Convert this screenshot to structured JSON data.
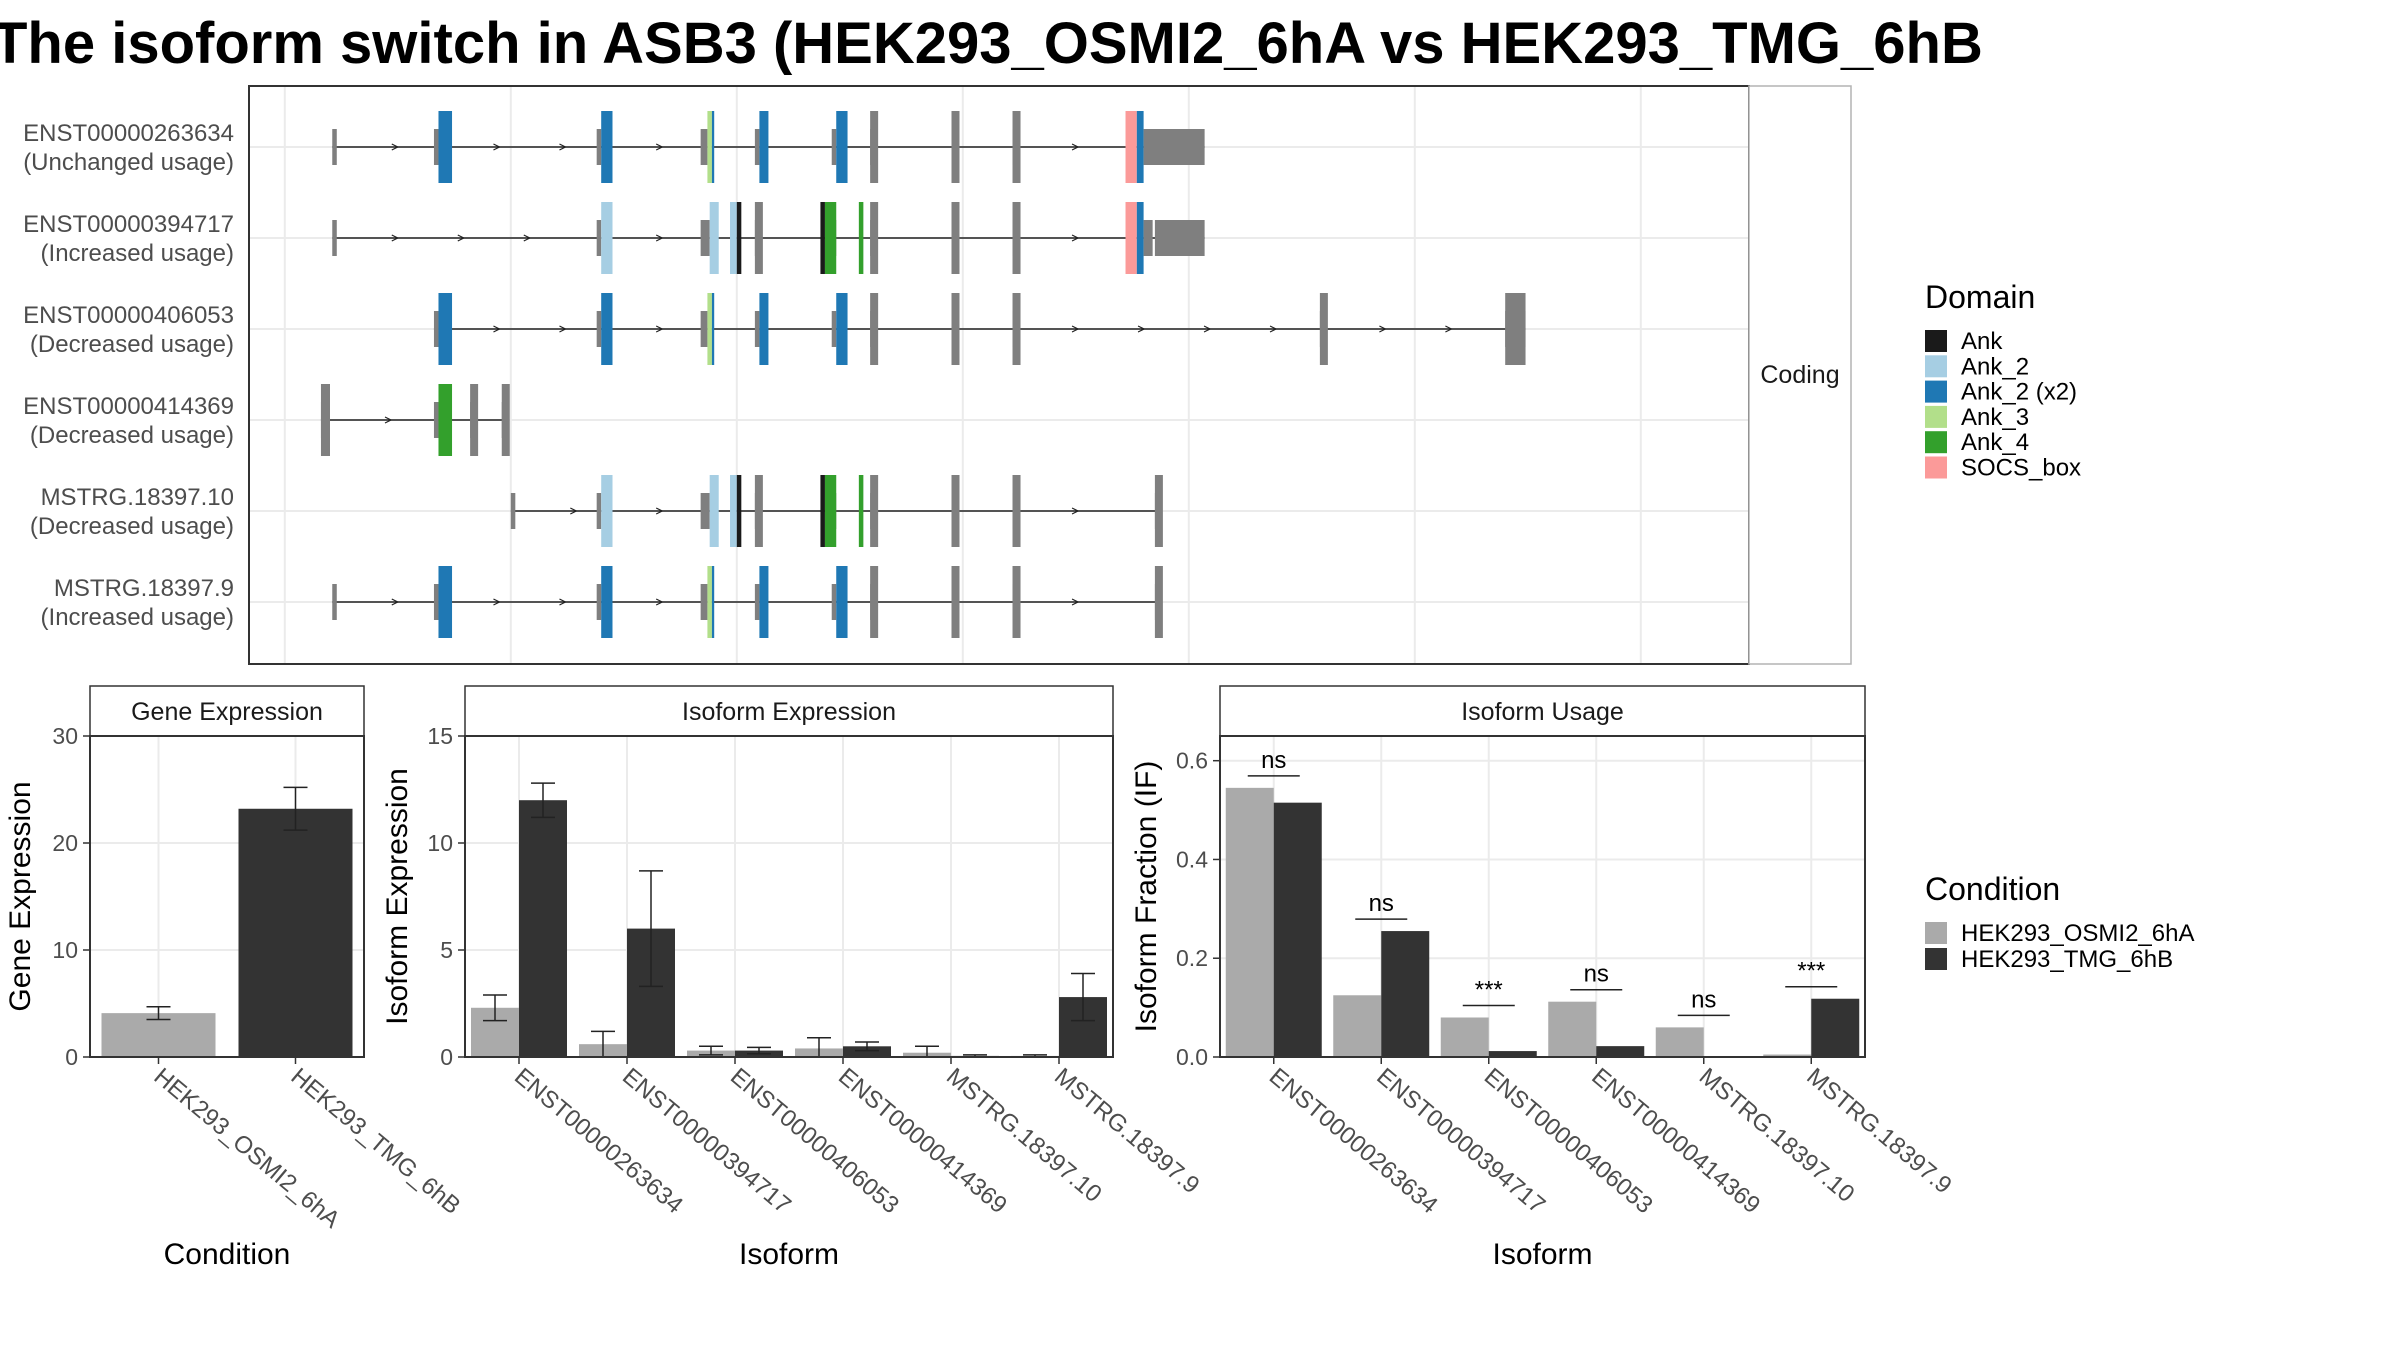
{
  "title": "The isoform switch in ASB3 (HEK293_OSMI2_6hA vs HEK293_TMG_6hB",
  "colors": {
    "Ank": "#1a1a1a",
    "Ank_2": "#a6cee3",
    "Ank_2 (x2)": "#1f78b4",
    "Ank_3": "#b2df8a",
    "Ank_4": "#33a02c",
    "SOCS_box": "#fb9a99",
    "exon": "#7f7f7f",
    "HEK293_OSMI2_6hA": "#aaaaaa",
    "HEK293_TMG_6hB": "#333333"
  },
  "chart_data": [
    {
      "type": "gene-structure",
      "facet_label": "Coding",
      "legend_title": "Domain",
      "legend": [
        "Ank",
        "Ank_2",
        "Ank_2 (x2)",
        "Ank_3",
        "Ank_4",
        "SOCS_box"
      ],
      "isoforms": [
        {
          "id": "ENST00000263634",
          "usage": "(Unchanged usage)",
          "exons": [
            [
              1,
              3
            ],
            [
              46,
              48
            ],
            [
              118,
              120
            ],
            [
              164,
              167
            ],
            [
              188,
              190
            ],
            [
              222,
              224
            ],
            [
              239,
              241
            ],
            [
              275,
              277
            ],
            [
              302,
              304
            ],
            [
              365,
              387
            ]
          ],
          "domains": [
            [
              48,
              54,
              "Ank_2 (x2)"
            ],
            [
              120,
              125,
              "Ank_2 (x2)"
            ],
            [
              167,
              169,
              "Ank_3"
            ],
            [
              169,
              170,
              "Ank_2 (x2)"
            ],
            [
              190,
              194,
              "Ank_2 (x2)"
            ],
            [
              224,
              229,
              "Ank_2 (x2)"
            ],
            [
              352,
              357,
              "SOCS_box"
            ],
            [
              357,
              360,
              "Ank_2 (x2)"
            ]
          ],
          "utr3": [
            360,
            375
          ]
        },
        {
          "id": "ENST00000394717",
          "usage": "(Increased usage)",
          "exons": [
            [
              1,
              3
            ],
            [
              118,
              120
            ],
            [
              164,
              168
            ],
            [
              188,
              190
            ],
            [
              222,
              224
            ],
            [
              239,
              241
            ],
            [
              275,
              277
            ],
            [
              302,
              304
            ],
            [
              365,
              387
            ]
          ],
          "domains": [
            [
              120,
              125,
              "Ank_2"
            ],
            [
              168,
              172,
              "Ank_2"
            ],
            [
              177,
              180,
              "Ank_2"
            ],
            [
              180,
              182,
              "Ank"
            ],
            [
              217,
              219,
              "Ank"
            ],
            [
              219,
              224,
              "Ank_4"
            ],
            [
              234,
              236,
              "Ank_4"
            ],
            [
              352,
              357,
              "SOCS_box"
            ],
            [
              357,
              360,
              "Ank_2 (x2)"
            ]
          ],
          "utr3": [
            360,
            364
          ]
        },
        {
          "id": "ENST00000406053",
          "usage": "(Decreased usage)",
          "exons": [
            [
              46,
              48
            ],
            [
              118,
              120
            ],
            [
              164,
              167
            ],
            [
              188,
              190
            ],
            [
              222,
              224
            ],
            [
              239,
              241
            ],
            [
              275,
              277
            ],
            [
              302,
              304
            ],
            [
              438,
              440
            ],
            [
              520,
              529
            ]
          ],
          "domains": [
            [
              48,
              54,
              "Ank_2 (x2)"
            ],
            [
              120,
              125,
              "Ank_2 (x2)"
            ],
            [
              167,
              169,
              "Ank_3"
            ],
            [
              169,
              170,
              "Ank_2 (x2)"
            ],
            [
              190,
              194,
              "Ank_2 (x2)"
            ],
            [
              224,
              229,
              "Ank_2 (x2)"
            ]
          ],
          "utr3": []
        },
        {
          "id": "ENST00000414369",
          "usage": "(Decreased usage)",
          "exons": [
            [
              -4,
              0
            ],
            [
              46,
              48
            ],
            [
              62,
              64
            ],
            [
              76,
              78
            ]
          ],
          "domains": [
            [
              48,
              54,
              "Ank_4"
            ]
          ],
          "utr3": []
        },
        {
          "id": "MSTRG.18397.10",
          "usage": "(Decreased usage)",
          "exons": [
            [
              80,
              82
            ],
            [
              118,
              120
            ],
            [
              164,
              168
            ],
            [
              188,
              190
            ],
            [
              222,
              224
            ],
            [
              239,
              241
            ],
            [
              275,
              277
            ],
            [
              302,
              304
            ],
            [
              365,
              367
            ]
          ],
          "domains": [
            [
              120,
              125,
              "Ank_2"
            ],
            [
              168,
              172,
              "Ank_2"
            ],
            [
              177,
              180,
              "Ank_2"
            ],
            [
              180,
              182,
              "Ank"
            ],
            [
              217,
              219,
              "Ank"
            ],
            [
              219,
              224,
              "Ank_4"
            ],
            [
              234,
              236,
              "Ank_4"
            ]
          ],
          "utr3": []
        },
        {
          "id": "MSTRG.18397.9",
          "usage": "(Increased usage)",
          "exons": [
            [
              1,
              3
            ],
            [
              46,
              48
            ],
            [
              118,
              120
            ],
            [
              164,
              167
            ],
            [
              188,
              190
            ],
            [
              222,
              224
            ],
            [
              239,
              241
            ],
            [
              275,
              277
            ],
            [
              302,
              304
            ],
            [
              365,
              367
            ]
          ],
          "domains": [
            [
              48,
              54,
              "Ank_2 (x2)"
            ],
            [
              120,
              125,
              "Ank_2 (x2)"
            ],
            [
              167,
              169,
              "Ank_3"
            ],
            [
              169,
              170,
              "Ank_2 (x2)"
            ],
            [
              190,
              194,
              "Ank_2 (x2)"
            ],
            [
              224,
              229,
              "Ank_2 (x2)"
            ]
          ],
          "utr3": []
        }
      ]
    },
    {
      "type": "bar",
      "facet_label": "Gene Expression",
      "xlabel": "Condition",
      "ylabel": "Gene Expression",
      "ylim": [
        0,
        30
      ],
      "yticks": [
        0,
        10,
        20,
        30
      ],
      "categories": [
        "HEK293_OSMI2_6hA",
        "HEK293_TMG_6hB"
      ],
      "values": [
        4.1,
        23.2
      ],
      "errors": [
        0.6,
        2.0
      ]
    },
    {
      "type": "bar",
      "facet_label": "Isoform Expression",
      "xlabel": "Isoform",
      "ylabel": "Isoform Expression",
      "ylim": [
        0,
        15
      ],
      "yticks": [
        0,
        5,
        10,
        15
      ],
      "categories": [
        "ENST00000263634",
        "ENST00000394717",
        "ENST00000406053",
        "ENST00000414369",
        "MSTRG.18397.10",
        "MSTRG.18397.9"
      ],
      "series": [
        {
          "name": "HEK293_OSMI2_6hA",
          "values": [
            2.3,
            0.6,
            0.3,
            0.4,
            0.2,
            0.05
          ],
          "errors": [
            0.6,
            0.6,
            0.2,
            0.5,
            0.3,
            0.05
          ]
        },
        {
          "name": "HEK293_TMG_6hB",
          "values": [
            12.0,
            6.0,
            0.3,
            0.5,
            0.05,
            2.8
          ],
          "errors": [
            0.8,
            2.7,
            0.15,
            0.2,
            0.05,
            1.1
          ]
        }
      ]
    },
    {
      "type": "bar",
      "facet_label": "Isoform Usage",
      "xlabel": "Isoform",
      "ylabel": "Isoform Fraction (IF)",
      "ylim": [
        0,
        0.65
      ],
      "yticks": [
        0.0,
        0.2,
        0.4,
        0.6
      ],
      "ytick_labels": [
        "0.0",
        "0.2",
        "0.4",
        "0.6"
      ],
      "categories": [
        "ENST00000263634",
        "ENST00000394717",
        "ENST00000406053",
        "ENST00000414369",
        "MSTRG.18397.10",
        "MSTRG.18397.9"
      ],
      "series": [
        {
          "name": "HEK293_OSMI2_6hA",
          "values": [
            0.545,
            0.125,
            0.08,
            0.112,
            0.06,
            0.005
          ]
        },
        {
          "name": "HEK293_TMG_6hB",
          "values": [
            0.515,
            0.255,
            0.012,
            0.022,
            0.0,
            0.118
          ]
        }
      ],
      "significance": [
        "ns",
        "ns",
        "***",
        "ns",
        "ns",
        "***"
      ]
    }
  ],
  "condition_legend": {
    "title": "Condition",
    "items": [
      "HEK293_OSMI2_6hA",
      "HEK293_TMG_6hB"
    ]
  }
}
